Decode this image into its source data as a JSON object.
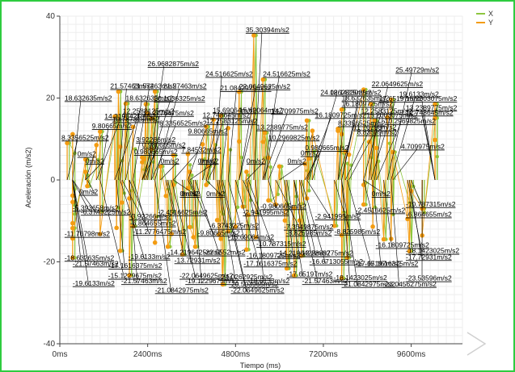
{
  "chart_data": {
    "type": "line",
    "xlabel": "Tiempo (ms)",
    "ylabel": "Aceleración (m/s2)",
    "ylim": [
      -40,
      40
    ],
    "xlim": [
      0,
      11000
    ],
    "x_ticks": [
      0,
      2400,
      4800,
      7200,
      9600
    ],
    "x_tick_labels": [
      "0ms",
      "2400ms",
      "4800ms",
      "7200ms",
      "9600ms"
    ],
    "y_ticks": [
      -40,
      -20,
      0,
      20,
      40
    ],
    "y_tick_labels": [
      "-40",
      "-20",
      "0",
      "20",
      "40"
    ],
    "grid": true,
    "legend_position": "top-right",
    "series": [
      {
        "name": "X",
        "color": "#8dc63f"
      },
      {
        "name": "Y",
        "color": "#f39c12"
      }
    ],
    "annotations": [
      {
        "text": "35.30394m/s2",
        "x": 5300,
        "y": 35.3
      },
      {
        "text": "26.9682875m/s2",
        "x": 2400,
        "y": 26.97
      },
      {
        "text": "25.49729m/s2",
        "x": 8950,
        "y": 25.5
      },
      {
        "text": "24.516625m/s2",
        "x": 4200,
        "y": 24.52
      },
      {
        "text": "24.516625m/s2",
        "x": 5550,
        "y": 24.52
      },
      {
        "text": "22.0649625m/s2",
        "x": 8300,
        "y": 22.06
      },
      {
        "text": "21.57463m/s2",
        "x": 1600,
        "y": 21.57
      },
      {
        "text": "21.57463m/s2",
        "x": 2000,
        "y": 21.57
      },
      {
        "text": "21.57463m/s2",
        "x": 2600,
        "y": 21.57
      },
      {
        "text": "21.0842975m/s2",
        "x": 4600,
        "y": 21.08
      },
      {
        "text": "22.0649625m/s2",
        "x": 4900,
        "y": 21.5
      },
      {
        "text": "19.6133m/s2",
        "x": 9050,
        "y": 19.61
      },
      {
        "text": "18.632635m/s2",
        "x": 350,
        "y": 18.63
      },
      {
        "text": "18.632635m/s2",
        "x": 1800,
        "y": 18.63
      },
      {
        "text": "20.1036325m/s2",
        "x": 2350,
        "y": 18.5
      },
      {
        "text": "15.69064m/s2",
        "x": 4400,
        "y": 15.69
      },
      {
        "text": "15.69064m/s2",
        "x": 4900,
        "y": 15.69
      },
      {
        "text": "24.0262825m/s2",
        "x": 6900,
        "y": 20.0
      },
      {
        "text": "18.1423025m/s2",
        "x": 7600,
        "y": 20.0
      },
      {
        "text": "18.632635m/s2",
        "x": 7700,
        "y": 18.63
      },
      {
        "text": "17.65197m/s2",
        "x": 8500,
        "y": 18.5
      },
      {
        "text": "15.2003075m/s2",
        "x": 10250,
        "y": 18.5
      },
      {
        "text": "16.1809725m/s2",
        "x": 7700,
        "y": 17.2
      },
      {
        "text": "12.2583125m/s2",
        "x": 1500,
        "y": 15.5
      },
      {
        "text": "11.2776475m/s2",
        "x": 2500,
        "y": 15.0
      },
      {
        "text": "12.748645m/s2",
        "x": 3900,
        "y": 14.5
      },
      {
        "text": "14.709975m/s2",
        "x": 5550,
        "y": 15.5
      },
      {
        "text": "12.2583125m/s2",
        "x": 8450,
        "y": 15.5
      },
      {
        "text": "13.2389775m/s2",
        "x": 10250,
        "y": 16.3
      },
      {
        "text": "14.2196425m/s2",
        "x": 1000,
        "y": 14.2
      },
      {
        "text": "10.787315m/s2",
        "x": 1650,
        "y": 13.5
      },
      {
        "text": "12.2583125m/s2",
        "x": 4000,
        "y": 13.0
      },
      {
        "text": "16.1809725m/s2",
        "x": 6750,
        "y": 14.5
      },
      {
        "text": "15.2003075m/s2",
        "x": 8600,
        "y": 14.5
      },
      {
        "text": "12.748645m/s2",
        "x": 10250,
        "y": 15.1
      },
      {
        "text": "8.3356525m/s2",
        "x": 2500,
        "y": 12.5
      },
      {
        "text": "13.2389775m/s2",
        "x": 5600,
        "y": 11.5
      },
      {
        "text": "8.3356525m/s2",
        "x": 7600,
        "y": 12.5
      },
      {
        "text": "10.2969825m/s2",
        "x": 8650,
        "y": 13.0
      },
      {
        "text": "9.80665m/s2",
        "x": 1100,
        "y": 11.8
      },
      {
        "text": "9.80665m/s2",
        "x": 3500,
        "y": 10.5
      },
      {
        "text": "11.76798m/s2",
        "x": 7800,
        "y": 11.5
      },
      {
        "text": "8.3356525m/s2",
        "x": 200,
        "y": 9.0
      },
      {
        "text": "10.2969825m/s2",
        "x": 5700,
        "y": 9.0
      },
      {
        "text": "8.83599m/s2",
        "x": 7900,
        "y": 10.3
      },
      {
        "text": "3.92266m/s2",
        "x": 2300,
        "y": 8.5
      },
      {
        "text": "0.980665m/s2",
        "x": 2250,
        "y": 7.2
      },
      {
        "text": "7.84532m/s2",
        "x": 3100,
        "y": 6.0
      },
      {
        "text": "0.980665m/s2",
        "x": 2250,
        "y": 5.5
      },
      {
        "text": "0.980665m/s2",
        "x": 6700,
        "y": 6.5
      },
      {
        "text": "4.709975m/s2",
        "x": 9100,
        "y": 6.8
      },
      {
        "text": "0m/s2",
        "x": 700,
        "y": 5.0
      },
      {
        "text": "0m/s2",
        "x": 2750,
        "y": 3.3
      },
      {
        "text": "0m/s2",
        "x": 3550,
        "y": 3.3
      },
      {
        "text": "0m/s2",
        "x": 4050,
        "y": 3.3
      },
      {
        "text": "0m/s2",
        "x": 5100,
        "y": 3.3
      },
      {
        "text": "0m/s2",
        "x": 6000,
        "y": 3.3
      },
      {
        "text": "0m/s2",
        "x": 6800,
        "y": 5.2
      },
      {
        "text": "0m/s2",
        "x": 700,
        "y": 3.3
      },
      {
        "text": "0m/s2",
        "x": 3100,
        "y": -2.0
      },
      {
        "text": "0m/s2",
        "x": 3500,
        "y": -2.0
      },
      {
        "text": "0m/s2",
        "x": 4000,
        "y": -2.0
      },
      {
        "text": "0m/s2",
        "x": 8300,
        "y": -2.0
      },
      {
        "text": "0m/s2",
        "x": 750,
        "y": -1.5
      },
      {
        "text": "-5.393658m/s2",
        "x": 350,
        "y": -5.39
      },
      {
        "text": "-6.3743225m/s2",
        "x": 350,
        "y": -6.37
      },
      {
        "text": "-2.4516625m/s2",
        "x": 2900,
        "y": -6.5
      },
      {
        "text": "-3.92266m/s2",
        "x": 1900,
        "y": -7.5
      },
      {
        "text": "-6.864655m/s2",
        "x": 1700,
        "y": -9.2
      },
      {
        "text": "-11.76798m/s2",
        "x": 350,
        "y": -11.77
      },
      {
        "text": "-11.2776475m/s2",
        "x": 2000,
        "y": -11.28
      },
      {
        "text": "-9.80665m/s2",
        "x": 3550,
        "y": -11.5
      },
      {
        "text": "-6.3743225m/s2",
        "x": 4300,
        "y": -9.8
      },
      {
        "text": "-15.69064m/s2",
        "x": 4600,
        "y": -12.5
      },
      {
        "text": "-10.787315m/s2",
        "x": 5150,
        "y": -14.2
      },
      {
        "text": "-0.980665m/s2",
        "x": 5700,
        "y": -5.0
      },
      {
        "text": "-2.941995m/s2",
        "x": 5000,
        "y": -6.5
      },
      {
        "text": "-2.941995m/s2",
        "x": 6750,
        "y": -7.5
      },
      {
        "text": "-2.4516625m/s2",
        "x": 8300,
        "y": -6.0
      },
      {
        "text": "-10.787315m/s2",
        "x": 9600,
        "y": -4.5
      },
      {
        "text": "-7.3549875m/s2",
        "x": 5900,
        "y": -10.0
      },
      {
        "text": "-8.825985m/s2",
        "x": 6400,
        "y": -11.5
      },
      {
        "text": "-8.825985m/s2",
        "x": 7500,
        "y": -11.2
      },
      {
        "text": "-6.864655m/s2",
        "x": 9900,
        "y": -7.0
      },
      {
        "text": "-18.632635m/s2",
        "x": 350,
        "y": -17.6
      },
      {
        "text": "-21.57463m/s2",
        "x": 350,
        "y": -19.0
      },
      {
        "text": "-19.6133m/s2",
        "x": 1650,
        "y": -17.3
      },
      {
        "text": "-17.1616375m/s2",
        "x": 1550,
        "y": -19.5
      },
      {
        "text": "-14.2196425m/s2",
        "x": 2950,
        "y": -16.3
      },
      {
        "text": "-22.5552m/s2",
        "x": 3700,
        "y": -16.3
      },
      {
        "text": "-13.72931m/s2",
        "x": 3350,
        "y": -18.2
      },
      {
        "text": "-16.1809725m/s2",
        "x": 5100,
        "y": -17.0
      },
      {
        "text": "-17.1616375m/s2",
        "x": 4800,
        "y": -19.0
      },
      {
        "text": "-14.2196425m/s2",
        "x": 6150,
        "y": -16.5
      },
      {
        "text": "-13.2389775m/s2",
        "x": 6550,
        "y": -16.5
      },
      {
        "text": "-16.6713055m/s2",
        "x": 6600,
        "y": -18.5
      },
      {
        "text": "-16.1809725m/s2",
        "x": 8850,
        "y": -14.5
      },
      {
        "text": "-18.1423025m/s2",
        "x": 9500,
        "y": -15.9
      },
      {
        "text": "-17.65197m/s2",
        "x": 7850,
        "y": -19.0
      },
      {
        "text": "-17.1616375m/s2",
        "x": 8550,
        "y": -19.0
      },
      {
        "text": "-17.72931m/s2",
        "x": 9550,
        "y": -17.4
      },
      {
        "text": "-15.1229675m/s2",
        "x": 1100,
        "y": -22.0
      },
      {
        "text": "-21.57463m/s2",
        "x": 1900,
        "y": -23.3
      },
      {
        "text": "-19.6133m/s2",
        "x": 350,
        "y": -23.8
      },
      {
        "text": "-22.0649625m/s2",
        "x": 3050,
        "y": -22.0
      },
      {
        "text": "-19.1229675m/s2",
        "x": 3650,
        "y": -23.3
      },
      {
        "text": "-24.0262925m/s2",
        "x": 4350,
        "y": -22.3
      },
      {
        "text": "-20.593965m/s2",
        "x": 4400,
        "y": -24.0
      },
      {
        "text": "-19.6133m/s2",
        "x": 5350,
        "y": -23.3
      },
      {
        "text": "-17.65197m/s2",
        "x": 6200,
        "y": -21.6
      },
      {
        "text": "-21.57463m/s2",
        "x": 6400,
        "y": -23.3
      },
      {
        "text": "-18.1423025m/s2",
        "x": 7700,
        "y": -22.5
      },
      {
        "text": "-21.0842975m/s2",
        "x": 7700,
        "y": -24.0
      },
      {
        "text": "-23.53596m/s2",
        "x": 9900,
        "y": -22.6
      },
      {
        "text": "-23.0456275m/s2",
        "x": 9050,
        "y": -24.0
      },
      {
        "text": "-21.0842975m/s2",
        "x": 2600,
        "y": -25.5
      },
      {
        "text": "-22.0649625m/s2",
        "x": 4450,
        "y": -25.5
      }
    ]
  }
}
